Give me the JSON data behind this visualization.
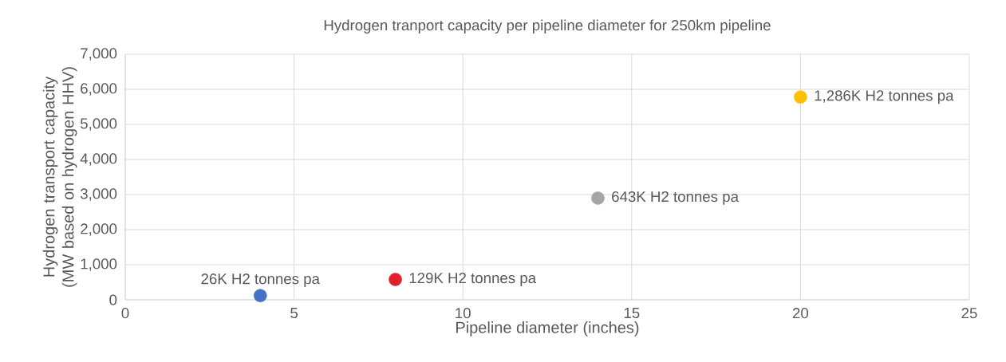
{
  "chart_data": {
    "type": "scatter",
    "title": "Hydrogen tranport capacity per pipeline diameter for 250km pipeline",
    "xlabel": "Pipeline diameter (inches)",
    "ylabel": "Hydrogen transport capacity (MW based on hydrogen HHV)",
    "x": [
      4,
      8,
      14,
      20
    ],
    "values": [
      120,
      580,
      2900,
      5780
    ],
    "colors": [
      "#4472c4",
      "#e0202a",
      "#a5a5a5",
      "#ffc000"
    ],
    "xlim": [
      0,
      25
    ],
    "xticks": [
      0,
      5,
      10,
      15,
      20,
      25
    ],
    "ylim": [
      0,
      7000
    ],
    "yticks": [
      0,
      {
        "value": 1000,
        "label": "1,000"
      },
      {
        "value": 2000,
        "label": "2,000"
      },
      {
        "value": 3000,
        "label": "3,000"
      },
      {
        "value": 4000,
        "label": "4,000"
      },
      {
        "value": 5000,
        "label": "5,000"
      },
      {
        "value": 6000,
        "label": "6,000"
      },
      {
        "value": 7000,
        "label": "7,000"
      }
    ],
    "grid": true,
    "marker": "circle",
    "annotations": [
      {
        "text": "26K H2 tonnes pa",
        "x": 4,
        "y": 120
      },
      {
        "text": "129K H2 tonnes pa",
        "x": 8,
        "y": 580
      },
      {
        "text": "643K H2 tonnes pa",
        "x": 14,
        "y": 2900
      },
      {
        "text": "1,286K H2 tonnes pa",
        "x": 20,
        "y": 5780
      }
    ]
  }
}
